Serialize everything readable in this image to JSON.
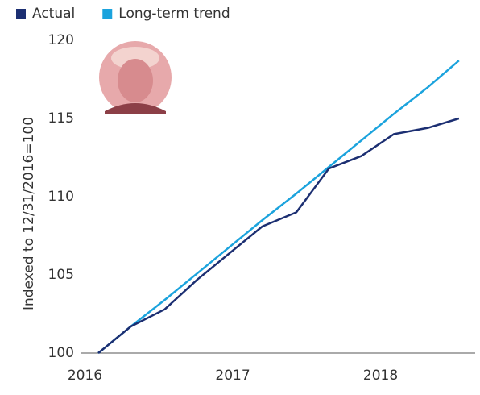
{
  "chart_data": {
    "type": "line",
    "y_label": "Indexed to 12/31/2016=100",
    "x": [
      2016.09,
      2016.31,
      2016.54,
      2016.76,
      2016.98,
      2017.2,
      2017.43,
      2017.65,
      2017.87,
      2018.09,
      2018.32,
      2018.53
    ],
    "series": [
      {
        "name": "Actual",
        "color": "#1c2f72",
        "values": [
          100,
          101.7,
          102.8,
          104.7,
          106.4,
          108.1,
          109.0,
          111.8,
          112.6,
          114.0,
          114.4,
          115.0
        ]
      },
      {
        "name": "Long-term trend",
        "color": "#1ba3dd",
        "values": [
          100,
          101.7,
          103.4,
          105.1,
          106.8,
          108.5,
          110.2,
          111.9,
          113.6,
          115.3,
          117.0,
          118.7
        ]
      }
    ],
    "xlim": [
      2015.97,
      2018.64
    ],
    "xticks": [
      2016,
      2017,
      2018
    ],
    "ylim": [
      100,
      120
    ],
    "yticks": [
      100,
      105,
      110,
      115,
      120
    ]
  }
}
